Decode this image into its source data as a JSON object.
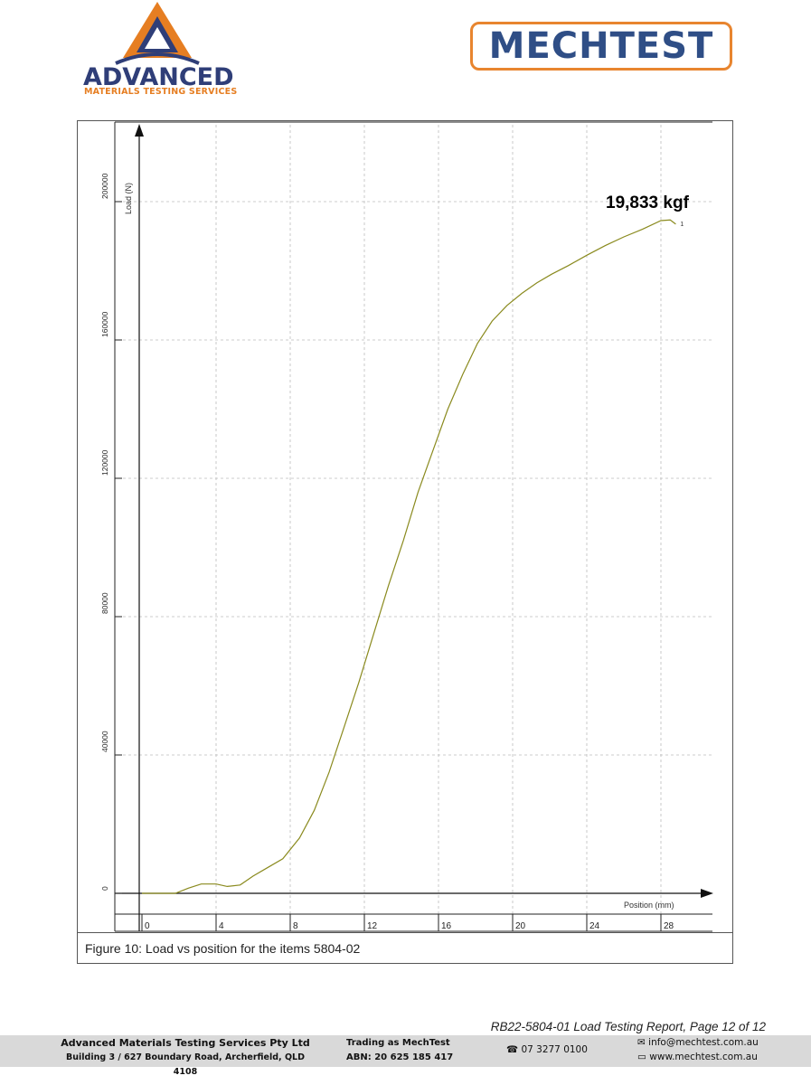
{
  "header": {
    "left_logo": {
      "word": "ADVANCED",
      "subtitle": "MATERIALS TESTING SERVICES",
      "colors": {
        "navy": "#2f3e78",
        "orange": "#e67e22"
      }
    },
    "right_logo": {
      "word": "MECHTEST",
      "colors": {
        "navy": "#2f4e86",
        "orange": "#e8852f"
      }
    }
  },
  "chart_data": {
    "type": "line",
    "ylabel": "Load (N)",
    "xlabel": "Position (mm)",
    "x_ticks": [
      "0",
      "4",
      "8",
      "12",
      "16",
      "20",
      "24",
      "28"
    ],
    "y_ticks": [
      "0",
      "40000",
      "80000",
      "120000",
      "160000",
      "200000"
    ],
    "xlim": [
      0,
      30.5
    ],
    "ylim": [
      -6000,
      224000
    ],
    "grid": true,
    "line_color": "#8a8a1e",
    "annotation": "19,833 kgf",
    "point_label": "1",
    "series": [
      {
        "x": [
          0,
          1,
          1.8,
          2.5,
          3.2,
          4,
          4.6,
          5.3,
          6.0,
          6.8,
          7.6,
          8.5,
          9.3,
          10.1,
          10.9,
          11.7,
          12.5,
          13.3,
          14.1,
          14.9,
          15.7,
          16.5,
          17.3,
          18.1,
          18.9,
          19.7,
          20.5,
          21.3,
          22.1,
          23.0,
          24.0,
          25.0,
          26.0,
          27.0,
          28.0,
          28.5,
          28.8
        ],
        "y": [
          0,
          0,
          0,
          1500,
          2700,
          2700,
          2000,
          2400,
          5000,
          7500,
          10000,
          16000,
          24000,
          35000,
          48000,
          61000,
          75000,
          89000,
          102000,
          116000,
          128000,
          140000,
          150000,
          159000,
          165500,
          170000,
          173500,
          176500,
          179000,
          181500,
          184500,
          187300,
          189800,
          192000,
          194500,
          194700,
          193500
        ]
      }
    ]
  },
  "caption": "Figure 10: Load vs position for the items 5804-02",
  "report_line": "RB22-5804-01 Load Testing Report, Page 12 of 12",
  "footer": {
    "company": "Advanced Materials Testing Services Pty Ltd",
    "address": "Building 3 / 627 Boundary Road, Archerfield, QLD 4108",
    "trading": "Trading as MechTest",
    "abn": "ABN: 20 625 185 417",
    "phone": "07 3277 0100",
    "email": "info@mechtest.com.au",
    "web": "www.mechtest.com.au"
  }
}
